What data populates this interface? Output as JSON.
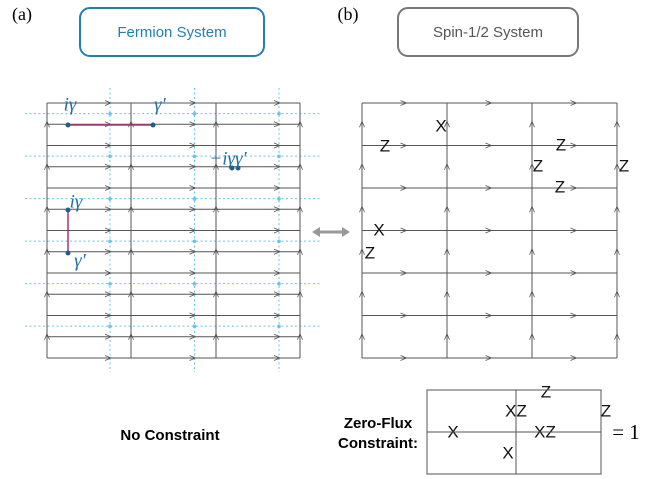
{
  "panel_a": {
    "tag": "(a)",
    "title": "Fermion System",
    "labels": [
      "iγ",
      "γ′",
      "−iγγ′",
      "iγ",
      "γ′"
    ],
    "caption": "No Constraint"
  },
  "panel_b": {
    "tag": "(b)",
    "title": "Spin-1/2 System",
    "labels": [
      "X",
      "Z",
      "Z",
      "Z",
      "Z",
      "Z",
      "X",
      "Z"
    ]
  },
  "constraint": {
    "caption": "Zero-Flux Constraint:",
    "labels": [
      "Z",
      "XZ",
      "X",
      "XZ",
      "Z",
      "X"
    ],
    "equation": "= 1"
  }
}
